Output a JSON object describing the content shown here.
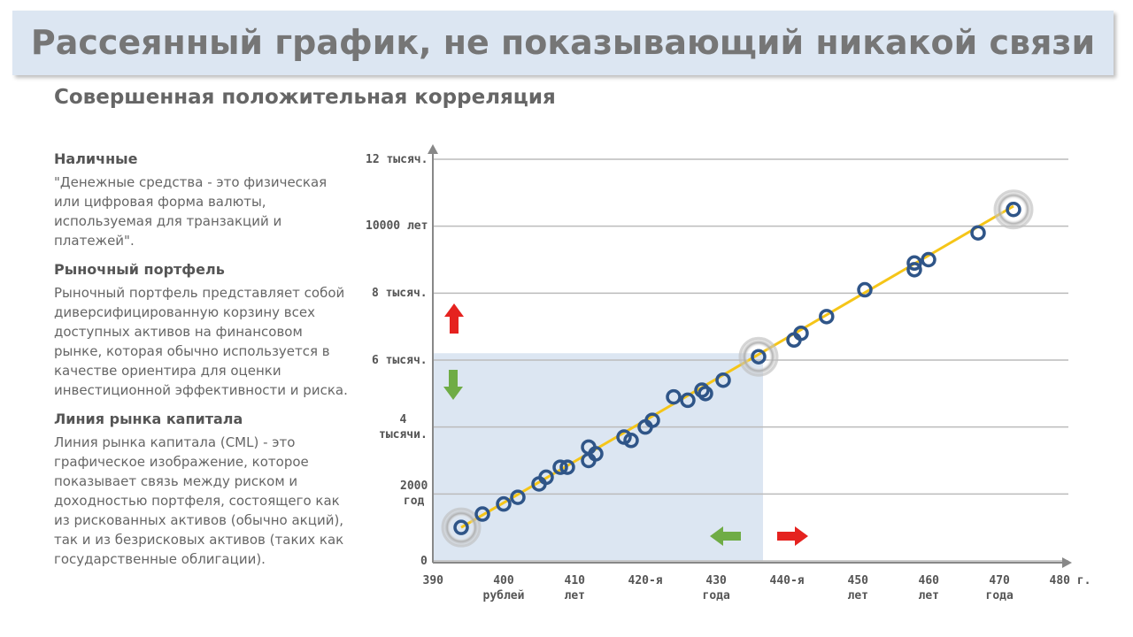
{
  "header": {
    "title": "Рассеянный график, не показывающий никакой связи",
    "subtitle": "Совершенная положительная корреляция"
  },
  "sections": [
    {
      "heading": "Наличные",
      "text": "\"Денежные средства - это физическая или цифровая форма валюты, используемая для транзакций и платежей\"."
    },
    {
      "heading": "Рыночный портфель",
      "text": "Рыночный портфель представляет собой диверсифицированную корзину всех доступных активов на финансовом рынке, которая обычно используется в качестве ориентира для оценки инвестиционной эффективности и риска."
    },
    {
      "heading": "Линия рынка капитала",
      "text": "Линия рынка капитала (CML) - это графическое изображение, которое показывает связь между риском и доходностью портфеля, состоящего как из рискованных активов (обычно акций), так и из безрисковых активов (таких как государственные облигации)."
    }
  ],
  "chart_data": {
    "type": "scatter",
    "x": [
      394,
      397,
      400,
      402,
      405,
      406,
      408,
      409,
      412,
      412,
      413,
      417,
      418,
      420,
      421,
      424,
      426,
      428,
      428.5,
      431,
      436,
      441,
      442,
      445.6,
      451,
      458,
      458,
      460,
      467,
      472
    ],
    "y": [
      1000,
      1400,
      1700,
      1900,
      2300,
      2500,
      2800,
      2800,
      3400,
      3000,
      3200,
      3700,
      3600,
      4000,
      4200,
      4900,
      4800,
      5100,
      5000,
      5400,
      6100,
      6600,
      6800,
      7300,
      8100,
      8700,
      8900,
      9000,
      9800,
      10500
    ],
    "color": "#2f5588",
    "highlighted": [
      0,
      20,
      29
    ],
    "highlight_color": "#bdbdbd",
    "trend_line": {
      "x": [
        394,
        472
      ],
      "y": [
        1000,
        10600
      ],
      "color": "#f5c518"
    },
    "shade_color": "#dce6f2",
    "xlim": [
      390,
      480
    ],
    "ylim": [
      0,
      12000
    ],
    "xticks": [
      390,
      {
        "value": 400,
        "label": "400\nрублей"
      },
      {
        "value": 410,
        "label": "410\nлет"
      },
      {
        "value": 420,
        "label": "420-я"
      },
      {
        "value": 430,
        "label": "430\nгода"
      },
      {
        "value": 440,
        "label": "440-я"
      },
      {
        "value": 450,
        "label": "450\nлет"
      },
      {
        "value": 460,
        "label": "460\nлет"
      },
      {
        "value": 470,
        "label": "470\nгода"
      },
      {
        "value": 480,
        "label": "480 г."
      }
    ],
    "yticks": [
      0,
      {
        "value": 2000,
        "label": "2000\nгод"
      },
      {
        "value": 4000,
        "label": "4\nтысячи."
      },
      {
        "value": 6000,
        "label": "6 тысяч."
      },
      {
        "value": 8000,
        "label": "8 тысяч."
      },
      {
        "value": 10000,
        "label": "10000 лет"
      },
      {
        "value": 12000,
        "label": "12 тысяч."
      }
    ],
    "grid": true
  }
}
